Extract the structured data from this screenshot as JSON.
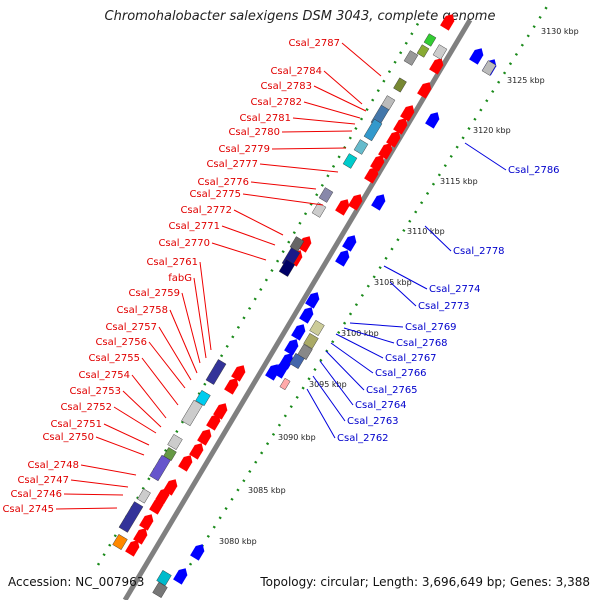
{
  "title": "Chromohalobacter salexigens DSM 3043, complete genome",
  "accession": "Accession: NC_007963",
  "topology": "Topology: circular; Length: 3,696,649 bp; Genes: 3,388",
  "colors": {
    "forward": "#ff0000",
    "reverse": "#0000ff",
    "backbone": "#808080",
    "ticks": "#008000"
  },
  "kbp_ticks": [
    "3080 kbp",
    "3085 kbp",
    "3090 kbp",
    "3095 kbp",
    "3100 kbp",
    "3105 kbp",
    "3110 kbp",
    "3115 kbp",
    "3120 kbp",
    "3125 kbp",
    "3130 kbp"
  ],
  "forward_labels": [
    "Csal_2787",
    "Csal_2784",
    "Csal_2783",
    "Csal_2782",
    "Csal_2781",
    "Csal_2780",
    "Csal_2779",
    "Csal_2777",
    "Csal_2776",
    "Csal_2775",
    "Csal_2772",
    "Csal_2771",
    "Csal_2770",
    "Csal_2761",
    "fabG",
    "Csal_2759",
    "Csal_2758",
    "Csal_2757",
    "Csal_2756",
    "Csal_2755",
    "Csal_2754",
    "Csal_2753",
    "Csal_2752",
    "Csal_2751",
    "Csal_2750",
    "Csal_2748",
    "Csal_2747",
    "Csal_2746",
    "Csal_2745"
  ],
  "reverse_labels": [
    "Csal_2786",
    "Csal_2778",
    "Csal_2774",
    "Csal_2773",
    "Csal_2769",
    "Csal_2768",
    "Csal_2767",
    "Csal_2766",
    "Csal_2765",
    "Csal_2764",
    "Csal_2763",
    "Csal_2762"
  ]
}
